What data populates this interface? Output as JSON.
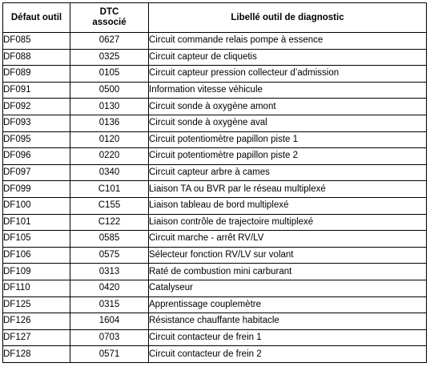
{
  "table": {
    "headers": {
      "defaut": "Défaut outil",
      "dtc_line1": "DTC",
      "dtc_line2": "associé",
      "libelle": "Libellé outil de diagnostic"
    },
    "rows": [
      {
        "defaut": "DF085",
        "dtc": "0627",
        "libelle": "Circuit commande relais pompe à essence"
      },
      {
        "defaut": "DF088",
        "dtc": "0325",
        "libelle": "Circuit capteur de cliquetis"
      },
      {
        "defaut": "DF089",
        "dtc": "0105",
        "libelle": "Circuit capteur pression collecteur d’admission"
      },
      {
        "defaut": "DF091",
        "dtc": "0500",
        "libelle": "Information vitesse véhicule"
      },
      {
        "defaut": "DF092",
        "dtc": "0130",
        "libelle": "Circuit sonde à oxygène amont"
      },
      {
        "defaut": "DF093",
        "dtc": "0136",
        "libelle": "Circuit sonde à oxygène aval"
      },
      {
        "defaut": "DF095",
        "dtc": "0120",
        "libelle": "Circuit potentiomètre papillon piste 1"
      },
      {
        "defaut": "DF096",
        "dtc": "0220",
        "libelle": "Circuit potentiomètre papillon piste 2"
      },
      {
        "defaut": "DF097",
        "dtc": "0340",
        "libelle": "Circuit capteur arbre à cames"
      },
      {
        "defaut": "DF099",
        "dtc": "C101",
        "libelle": "Liaison TA ou BVR par le réseau multiplexé"
      },
      {
        "defaut": "DF100",
        "dtc": "C155",
        "libelle": "Liaison tableau de bord multiplexé"
      },
      {
        "defaut": "DF101",
        "dtc": "C122",
        "libelle": "Liaison contrôle de trajectoire multiplexé"
      },
      {
        "defaut": "DF105",
        "dtc": "0585",
        "libelle": "Circuit marche - arrêt RV/LV"
      },
      {
        "defaut": "DF106",
        "dtc": "0575",
        "libelle": "Sélecteur fonction RV/LV sur volant"
      },
      {
        "defaut": "DF109",
        "dtc": "0313",
        "libelle": "Raté de combustion mini carburant"
      },
      {
        "defaut": "DF110",
        "dtc": "0420",
        "libelle": "Catalyseur"
      },
      {
        "defaut": "DF125",
        "dtc": "0315",
        "libelle": "Apprentissage couplemètre"
      },
      {
        "defaut": "DF126",
        "dtc": "1604",
        "libelle": "Résistance chauffante habitacle"
      },
      {
        "defaut": "DF127",
        "dtc": "0703",
        "libelle": "Circuit contacteur de frein 1"
      },
      {
        "defaut": "DF128",
        "dtc": "0571",
        "libelle": "Circuit contacteur de frein 2"
      }
    ]
  }
}
